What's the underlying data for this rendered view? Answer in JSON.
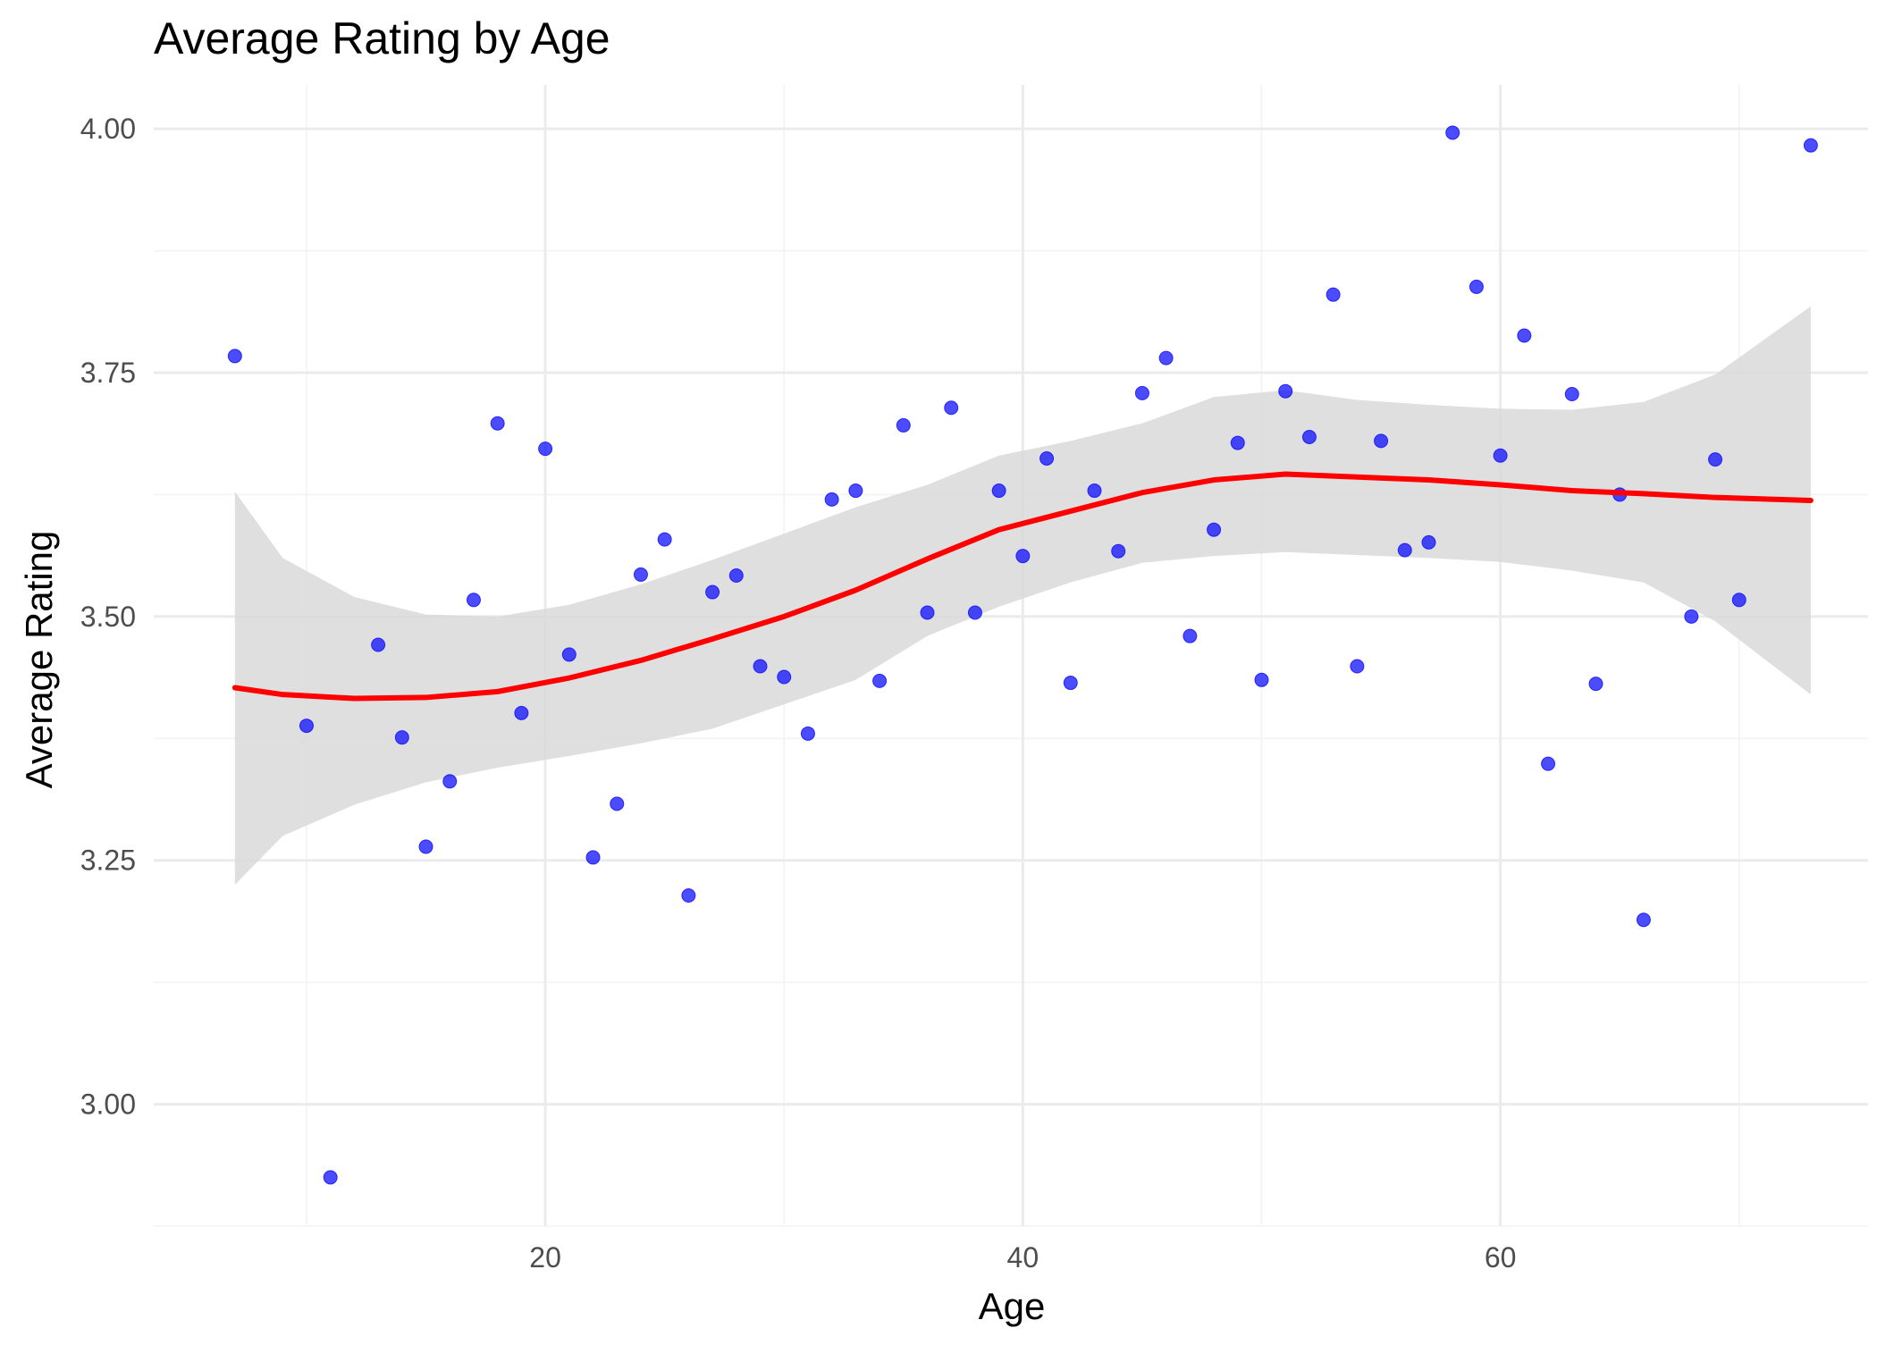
{
  "chart_data": {
    "type": "scatter",
    "title": "Average Rating by Age",
    "xlabel": "Age",
    "ylabel": "Average Rating",
    "xlim": [
      3.6,
      75.4
    ],
    "ylim": [
      2.875,
      4.045
    ],
    "x_ticks": [
      20,
      40,
      60
    ],
    "x_tick_labels": [
      "20",
      "40",
      "60"
    ],
    "y_ticks": [
      3.0,
      3.25,
      3.5,
      3.75,
      4.0
    ],
    "y_tick_labels": [
      "3.00",
      "3.25",
      "3.50",
      "3.75",
      "4.00"
    ],
    "grid": true,
    "legend": "none",
    "colors": {
      "points": "#0000ff",
      "trend_line": "#ff0000",
      "confidence_band": "#d9d9d9",
      "grid": "#ebebeb"
    },
    "points": [
      {
        "x": 7,
        "y": 3.767
      },
      {
        "x": 10,
        "y": 3.388
      },
      {
        "x": 11,
        "y": 2.925
      },
      {
        "x": 13,
        "y": 3.471
      },
      {
        "x": 14,
        "y": 3.376
      },
      {
        "x": 15,
        "y": 3.264
      },
      {
        "x": 16,
        "y": 3.331
      },
      {
        "x": 17,
        "y": 3.517
      },
      {
        "x": 18,
        "y": 3.698
      },
      {
        "x": 19,
        "y": 3.401
      },
      {
        "x": 20,
        "y": 3.672
      },
      {
        "x": 21,
        "y": 3.461
      },
      {
        "x": 22,
        "y": 3.253
      },
      {
        "x": 23,
        "y": 3.308
      },
      {
        "x": 24,
        "y": 3.543
      },
      {
        "x": 25,
        "y": 3.579
      },
      {
        "x": 26,
        "y": 3.214
      },
      {
        "x": 27,
        "y": 3.525
      },
      {
        "x": 28,
        "y": 3.542
      },
      {
        "x": 29,
        "y": 3.449
      },
      {
        "x": 30,
        "y": 3.438
      },
      {
        "x": 31,
        "y": 3.38
      },
      {
        "x": 32,
        "y": 3.62
      },
      {
        "x": 33,
        "y": 3.629
      },
      {
        "x": 34,
        "y": 3.434
      },
      {
        "x": 35,
        "y": 3.696
      },
      {
        "x": 36,
        "y": 3.504
      },
      {
        "x": 37,
        "y": 3.714
      },
      {
        "x": 38,
        "y": 3.504
      },
      {
        "x": 39,
        "y": 3.629
      },
      {
        "x": 40,
        "y": 3.562
      },
      {
        "x": 41,
        "y": 3.662
      },
      {
        "x": 42,
        "y": 3.432
      },
      {
        "x": 43,
        "y": 3.629
      },
      {
        "x": 44,
        "y": 3.567
      },
      {
        "x": 45,
        "y": 3.729
      },
      {
        "x": 46,
        "y": 3.765
      },
      {
        "x": 47,
        "y": 3.48
      },
      {
        "x": 48,
        "y": 3.589
      },
      {
        "x": 49,
        "y": 3.678
      },
      {
        "x": 50,
        "y": 3.435
      },
      {
        "x": 51,
        "y": 3.731
      },
      {
        "x": 52,
        "y": 3.684
      },
      {
        "x": 53,
        "y": 3.83
      },
      {
        "x": 54,
        "y": 3.449
      },
      {
        "x": 55,
        "y": 3.68
      },
      {
        "x": 56,
        "y": 3.568
      },
      {
        "x": 57,
        "y": 3.576
      },
      {
        "x": 58,
        "y": 3.996
      },
      {
        "x": 59,
        "y": 3.838
      },
      {
        "x": 60,
        "y": 3.665
      },
      {
        "x": 61,
        "y": 3.788
      },
      {
        "x": 62,
        "y": 3.349
      },
      {
        "x": 63,
        "y": 3.728
      },
      {
        "x": 64,
        "y": 3.431
      },
      {
        "x": 65,
        "y": 3.625
      },
      {
        "x": 66,
        "y": 3.189
      },
      {
        "x": 68,
        "y": 3.5
      },
      {
        "x": 69,
        "y": 3.661
      },
      {
        "x": 70,
        "y": 3.517
      },
      {
        "x": 73,
        "y": 3.983
      }
    ],
    "trend": {
      "x": [
        7,
        9,
        12,
        15,
        18,
        21,
        24,
        27,
        30,
        33,
        36,
        39,
        42,
        45,
        48,
        51,
        54,
        57,
        60,
        63,
        66,
        69,
        73
      ],
      "y": [
        3.427,
        3.42,
        3.416,
        3.417,
        3.423,
        3.437,
        3.455,
        3.477,
        3.5,
        3.527,
        3.559,
        3.589,
        3.608,
        3.627,
        3.64,
        3.646,
        3.643,
        3.64,
        3.635,
        3.629,
        3.626,
        3.622,
        3.619
      ],
      "lower": [
        3.225,
        3.275,
        3.307,
        3.33,
        3.345,
        3.357,
        3.37,
        3.385,
        3.41,
        3.435,
        3.48,
        3.51,
        3.535,
        3.555,
        3.562,
        3.566,
        3.563,
        3.56,
        3.556,
        3.547,
        3.535,
        3.495,
        3.42
      ],
      "upper": [
        3.628,
        3.56,
        3.52,
        3.502,
        3.5,
        3.512,
        3.533,
        3.558,
        3.585,
        3.612,
        3.635,
        3.665,
        3.68,
        3.698,
        3.725,
        3.732,
        3.722,
        3.717,
        3.713,
        3.712,
        3.72,
        3.748,
        3.818
      ]
    }
  }
}
